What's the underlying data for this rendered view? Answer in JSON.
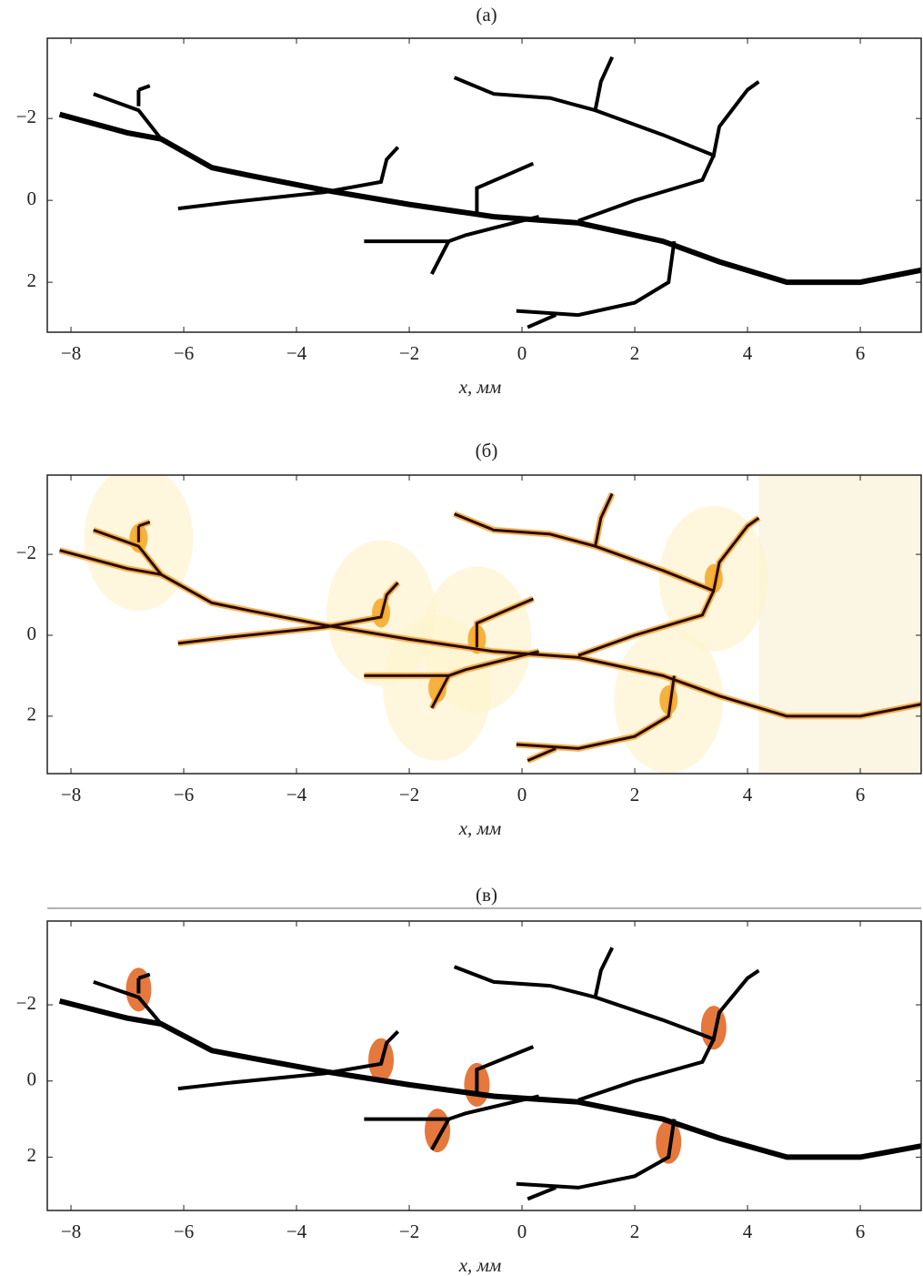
{
  "chart_data": [
    {
      "type": "image",
      "title": "(а)",
      "xlabel": "x, мм",
      "style": "binary",
      "xlim": [
        -8.42,
        7.08
      ],
      "ylim": [
        -3.96,
        3.22
      ],
      "y_inverted": true,
      "xticks": [
        {
          "value": -8,
          "label": "−8"
        },
        {
          "value": -6,
          "label": "−6"
        },
        {
          "value": -4,
          "label": "−4"
        },
        {
          "value": -2,
          "label": "−2"
        },
        0,
        2,
        4,
        6
      ],
      "yticks": [
        {
          "value": -2,
          "label": "−2"
        },
        0,
        2
      ]
    },
    {
      "type": "image",
      "title": "(б)",
      "xlabel": "x, мм",
      "style": "glow",
      "xlim": [
        -8.42,
        7.08
      ],
      "ylim": [
        -3.96,
        3.42
      ],
      "y_inverted": true,
      "xticks": [
        {
          "value": -8,
          "label": "−8"
        },
        {
          "value": -6,
          "label": "−6"
        },
        {
          "value": -4,
          "label": "−4"
        },
        {
          "value": -2,
          "label": "−2"
        },
        0,
        2,
        4,
        6
      ],
      "yticks": [
        {
          "value": -2,
          "label": "−2"
        },
        0,
        2
      ]
    },
    {
      "type": "image",
      "title": "(в)",
      "xlabel": "x, мм",
      "style": "spots",
      "xlim": [
        -8.42,
        7.08
      ],
      "ylim": [
        -4.2,
        3.4
      ],
      "y_inverted": true,
      "xticks": [
        {
          "value": -8,
          "label": "−8"
        },
        {
          "value": -6,
          "label": "−6"
        },
        {
          "value": -4,
          "label": "−4"
        },
        {
          "value": -2,
          "label": "−2"
        },
        0,
        2,
        4,
        6
      ],
      "yticks": [
        {
          "value": -2,
          "label": "−2"
        },
        0,
        2
      ]
    }
  ]
}
